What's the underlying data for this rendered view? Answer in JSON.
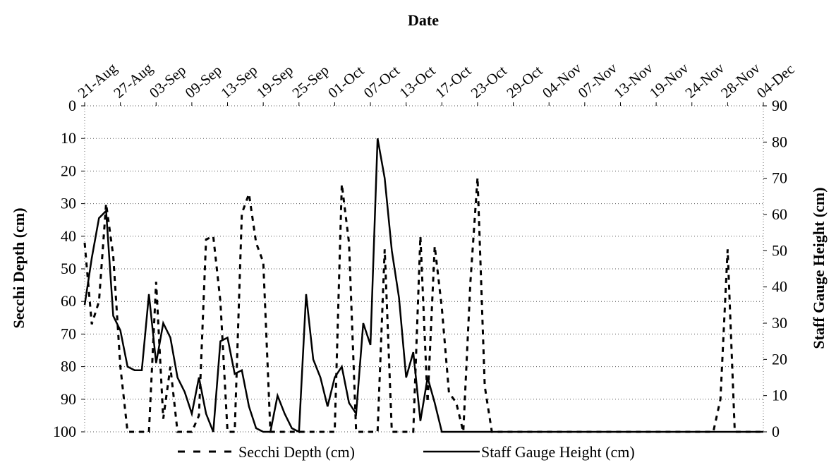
{
  "chart_data": {
    "type": "line",
    "title": "Date",
    "y_left_label": "Secchi Depth (cm)",
    "y_right_label": "Staff Gauge Height (cm)",
    "x_tick_labels": [
      "21-Aug",
      "27-Aug",
      "03-Sep",
      "09-Sep",
      "13-Sep",
      "19-Sep",
      "25-Sep",
      "01-Oct",
      "07-Oct",
      "13-Oct",
      "17-Oct",
      "23-Oct",
      "29-Oct",
      "04-Nov",
      "07-Nov",
      "13-Nov",
      "19-Nov",
      "24-Nov",
      "28-Nov",
      "04-Dec"
    ],
    "y_left_ticks": [
      0,
      10,
      20,
      30,
      40,
      50,
      60,
      70,
      80,
      90,
      100
    ],
    "y_left_range": [
      0,
      100
    ],
    "y_left_reversed": true,
    "y_right_ticks": [
      90,
      80,
      70,
      60,
      50,
      40,
      30,
      20,
      10,
      0
    ],
    "y_right_range": [
      0,
      90
    ],
    "grid": "horizontal dotted",
    "legend_position": "bottom",
    "series": [
      {
        "name": "Secchi Depth (cm)",
        "axis": "left",
        "style": "dashed",
        "x": [
          0.0,
          0.2,
          0.4,
          0.6,
          0.8,
          1.0,
          1.2,
          1.4,
          1.6,
          1.8,
          2.0,
          2.2,
          2.4,
          2.6,
          2.8,
          3.0,
          3.2,
          3.4,
          3.6,
          3.8,
          4.0,
          4.2,
          4.4,
          4.6,
          4.8,
          5.0,
          5.2,
          5.4,
          5.6,
          5.8,
          6.0,
          6.2,
          6.4,
          6.6,
          6.8,
          7.0,
          7.2,
          7.4,
          7.6,
          7.8,
          8.0,
          8.2,
          8.4,
          8.6,
          8.8,
          9.0,
          9.2,
          9.4,
          9.6,
          9.8,
          10.0,
          10.2,
          10.4,
          10.6,
          10.8,
          11.0,
          11.2,
          11.4,
          11.6,
          11.8,
          12.0,
          12.2,
          12.4,
          12.6,
          12.8,
          13.0,
          13.2,
          13.4,
          13.6,
          13.8,
          14.0,
          14.2,
          14.4,
          14.6,
          14.8,
          15.0,
          15.2,
          15.4,
          15.6,
          15.8,
          16.0,
          16.2,
          16.4,
          16.6,
          16.8,
          17.0,
          17.2,
          17.4,
          17.6,
          17.8,
          18.0,
          18.2,
          18.4,
          18.6,
          18.8,
          19.0
        ],
        "values": [
          42,
          67,
          60,
          30,
          46,
          80,
          100,
          100,
          100,
          100,
          54,
          96,
          80,
          100,
          100,
          100,
          95,
          41,
          40,
          60,
          100,
          100,
          33,
          27,
          42,
          48,
          100,
          100,
          100,
          100,
          100,
          100,
          100,
          100,
          100,
          100,
          24,
          42,
          100,
          100,
          100,
          100,
          44,
          100,
          100,
          100,
          100,
          40,
          91,
          43,
          62,
          88,
          91,
          100,
          54,
          22,
          86,
          100,
          100,
          100,
          100,
          100,
          100,
          100,
          100,
          100,
          100,
          100,
          100,
          100,
          100,
          100,
          100,
          100,
          100,
          100,
          100,
          100,
          100,
          100,
          100,
          100,
          100,
          100,
          100,
          100,
          100,
          100,
          100,
          90,
          44,
          100,
          100,
          100,
          100,
          100
        ]
      },
      {
        "name": "Staff Gauge Height (cm)",
        "axis": "right",
        "style": "solid",
        "x": [
          0.0,
          0.2,
          0.4,
          0.6,
          0.8,
          1.0,
          1.2,
          1.4,
          1.6,
          1.8,
          2.0,
          2.2,
          2.4,
          2.6,
          2.8,
          3.0,
          3.2,
          3.4,
          3.6,
          3.8,
          4.0,
          4.2,
          4.4,
          4.6,
          4.8,
          5.0,
          5.2,
          5.4,
          5.6,
          5.8,
          6.0,
          6.2,
          6.4,
          6.6,
          6.8,
          7.0,
          7.2,
          7.4,
          7.6,
          7.8,
          8.0,
          8.2,
          8.4,
          8.6,
          8.8,
          9.0,
          9.2,
          9.4,
          9.6,
          9.8,
          10.0,
          10.2,
          10.4,
          10.6,
          10.8,
          11.0,
          11.2,
          11.4,
          11.6,
          11.8,
          12.0,
          12.2,
          12.4,
          12.6,
          12.8,
          13.0,
          13.2,
          13.4,
          13.6,
          13.8,
          14.0,
          14.2,
          14.4,
          14.6,
          14.8,
          15.0,
          15.2,
          15.4,
          15.6,
          15.8,
          16.0,
          16.2,
          16.4,
          16.6,
          16.8,
          17.0,
          17.2,
          17.4,
          17.6,
          17.8,
          18.0,
          18.2,
          18.4,
          18.6,
          18.8,
          19.0
        ],
        "values": [
          35,
          48,
          59,
          61,
          32,
          28,
          18,
          17,
          17,
          38,
          19,
          30,
          26,
          15,
          11,
          5,
          15,
          5,
          0,
          25,
          26,
          16,
          17,
          7,
          1,
          0,
          0,
          10,
          5,
          1,
          0,
          38,
          20,
          15,
          7,
          15,
          18,
          8,
          5,
          30,
          24,
          81,
          70,
          50,
          37,
          15,
          22,
          3,
          15,
          8,
          0,
          0,
          0,
          0,
          0,
          0,
          0,
          0,
          0,
          0,
          0,
          0,
          0,
          0,
          0,
          0,
          0,
          0,
          0,
          0,
          0,
          0,
          0,
          0,
          0,
          0,
          0,
          0,
          0,
          0,
          0,
          0,
          0,
          0,
          0,
          0,
          0,
          0,
          0,
          0,
          0,
          0,
          0,
          0,
          0,
          0
        ]
      }
    ]
  }
}
